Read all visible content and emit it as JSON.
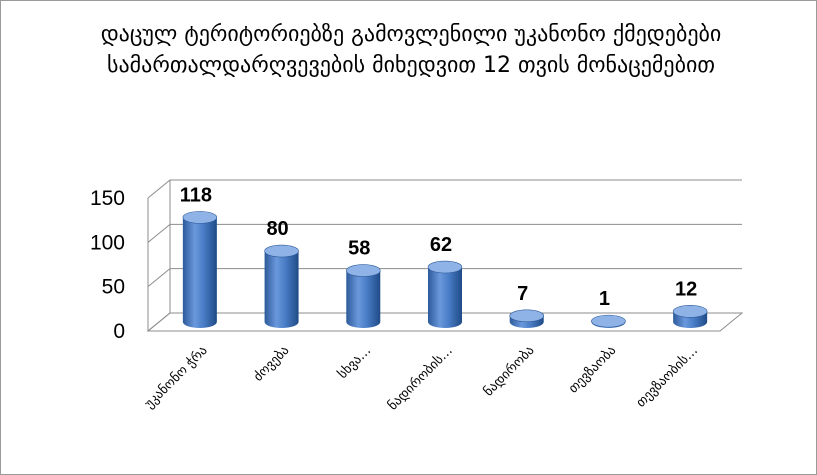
{
  "chart_data": {
    "type": "bar",
    "title": "დაცულ ტერიტორიებზე გამოვლენილი უკანონო ქმედებები სამართალდარღვევების მიხედვით 12 თვის მონაცემებით",
    "categories": [
      "უკანონო ჭრა",
      "ძოვება",
      "სხვა…",
      "ნადირობის…",
      "ნადირობა",
      "თევზაობა",
      "თევზაობის…"
    ],
    "values": [
      118,
      80,
      58,
      62,
      7,
      1,
      12
    ],
    "ylim": [
      0,
      150
    ],
    "yticks": [
      0,
      50,
      100,
      150
    ],
    "grid": true,
    "colors": {
      "bar": "#4a7ec7",
      "bar_dark": "#2d5a9a",
      "bar_light": "#8fb3e6",
      "grid": "#8c8c8c"
    }
  }
}
